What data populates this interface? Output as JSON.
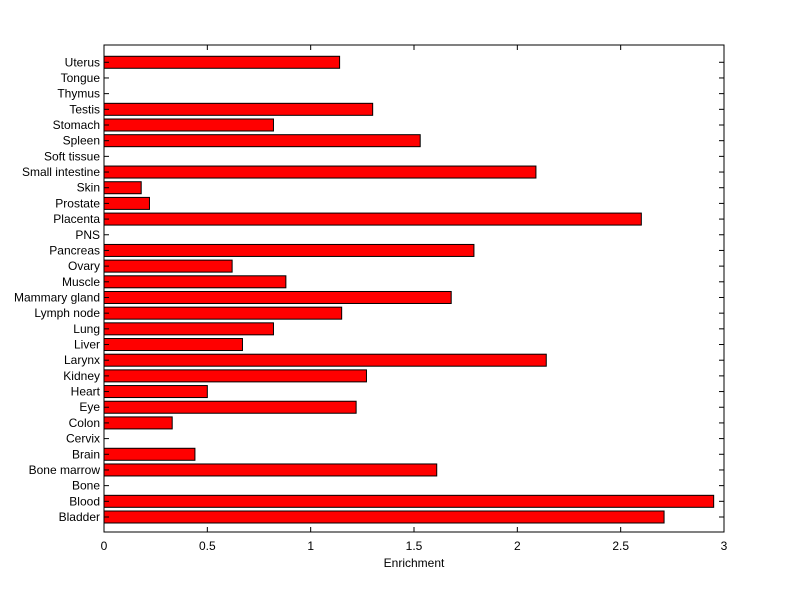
{
  "chart_data": {
    "type": "bar",
    "orientation": "horizontal",
    "title": "",
    "xlabel": "Enrichment",
    "ylabel": "",
    "xlim": [
      0,
      3
    ],
    "xticks": [
      0,
      0.5,
      1,
      1.5,
      2,
      2.5,
      3
    ],
    "xtick_labels": [
      "0",
      "0.5",
      "1",
      "1.5",
      "2",
      "2.5",
      "3"
    ],
    "grid": false,
    "bar_color": "#ff0000",
    "bar_edge_color": "#000000",
    "categories": [
      "Bladder",
      "Blood",
      "Bone",
      "Bone marrow",
      "Brain",
      "Cervix",
      "Colon",
      "Eye",
      "Heart",
      "Kidney",
      "Larynx",
      "Liver",
      "Lung",
      "Lymph node",
      "Mammary gland",
      "Muscle",
      "Ovary",
      "Pancreas",
      "PNS",
      "Placenta",
      "Prostate",
      "Skin",
      "Small intestine",
      "Soft tissue",
      "Spleen",
      "Stomach",
      "Testis",
      "Thymus",
      "Tongue",
      "Uterus"
    ],
    "values": [
      2.71,
      2.95,
      0,
      1.61,
      0.44,
      0,
      0.33,
      1.22,
      0.5,
      1.27,
      2.14,
      0.67,
      0.82,
      1.15,
      1.68,
      0.88,
      0.62,
      1.79,
      0,
      2.6,
      0.22,
      0.18,
      2.09,
      0,
      1.53,
      0.82,
      1.3,
      0,
      0,
      1.14
    ]
  }
}
